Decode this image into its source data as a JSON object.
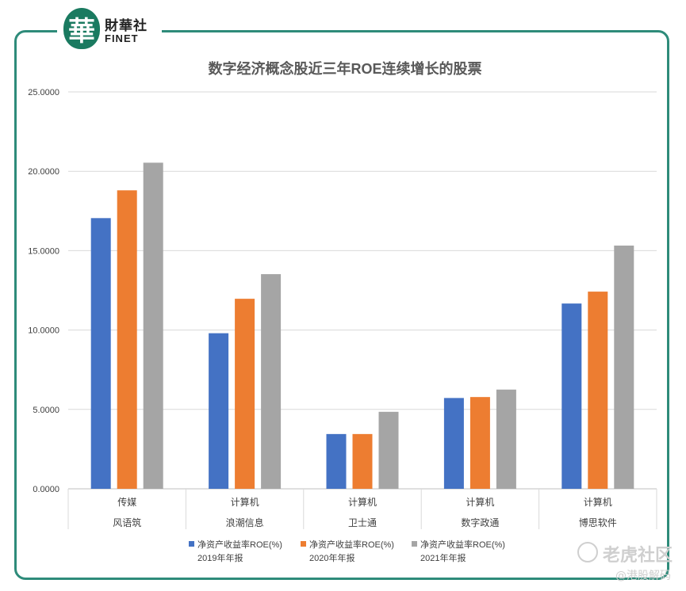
{
  "logo": {
    "mark": "華",
    "name_cn": "財華社",
    "name_en": "FINET"
  },
  "watermark": {
    "brand": "老虎社区",
    "author": "@港股解码"
  },
  "chart_data": {
    "type": "bar",
    "title": "数字经济概念股近三年ROE连续增长的股票",
    "categories": [
      {
        "industry": "传媒",
        "name": "风语筑"
      },
      {
        "industry": "计算机",
        "name": "浪潮信息"
      },
      {
        "industry": "计算机",
        "name": "卫士通"
      },
      {
        "industry": "计算机",
        "name": "数字政通"
      },
      {
        "industry": "计算机",
        "name": "博思软件"
      }
    ],
    "series": [
      {
        "name": "净资产收益率ROE(%)",
        "name_line2": "2019年年报",
        "color": "#4472c4",
        "values": [
          17.05,
          9.8,
          3.45,
          5.72,
          11.67
        ]
      },
      {
        "name": "净资产收益率ROE(%)",
        "name_line2": "2020年年报",
        "color": "#ed7d31",
        "values": [
          18.8,
          11.97,
          3.45,
          5.78,
          12.42
        ]
      },
      {
        "name": "净资产收益率ROE(%)",
        "name_line2": "2021年年报",
        "color": "#a5a5a5",
        "values": [
          20.54,
          13.52,
          4.85,
          6.25,
          15.32
        ]
      }
    ],
    "ylim": [
      0,
      25
    ],
    "yticks": [
      "0.0000",
      "5.0000",
      "10.0000",
      "15.0000",
      "20.0000",
      "25.0000"
    ],
    "grid": true,
    "legend": "bottom"
  }
}
